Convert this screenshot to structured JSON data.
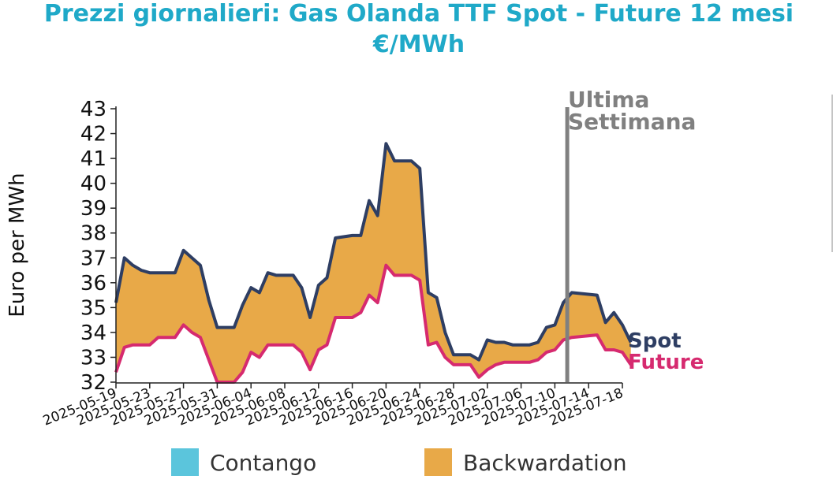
{
  "title": {
    "line1": "Prezzi giornalieri: Gas Olanda TTF Spot - Future 12 mesi",
    "line2": "€/MWh"
  },
  "colors": {
    "title": "#1fa9c8",
    "spot": "#2e3e63",
    "future": "#d62a6f",
    "backwardation": "#e8a948",
    "contango": "#5bc5dc",
    "marker_line": "#808080"
  },
  "legend": {
    "contango": "Contango",
    "backwardation": "Backwardation"
  },
  "chart_data": {
    "type": "area",
    "title": "Prezzi giornalieri: Gas Olanda TTF Spot - Future 12 mesi",
    "subtitle": "€/MWh",
    "ylabel": "Euro per MWh",
    "xlabel": "",
    "ylim": [
      32,
      43
    ],
    "xlim": [
      "2025-05-19",
      "2025-07-18"
    ],
    "y_ticks": [
      32,
      33,
      34,
      35,
      36,
      37,
      38,
      39,
      40,
      41,
      42,
      43
    ],
    "x_ticks": [
      "2025-05-19",
      "2025-05-23",
      "2025-05-27",
      "2025-05-31",
      "2025-06-04",
      "2025-06-08",
      "2025-06-12",
      "2025-06-16",
      "2025-06-20",
      "2025-06-24",
      "2025-06-28",
      "2025-07-02",
      "2025-07-06",
      "2025-07-10",
      "2025-07-14",
      "2025-07-18"
    ],
    "grid": false,
    "legend_position": "bottom",
    "vertical_marker": {
      "date": "2025-07-11",
      "label_line1": "Ultima",
      "label_line2": "Settimana"
    },
    "fill_between": {
      "above": "Backwardation",
      "below": "Contango"
    },
    "series": [
      {
        "name": "Spot",
        "points": [
          [
            "2025-05-19",
            35.2
          ],
          [
            "2025-05-20",
            37.0
          ],
          [
            "2025-05-21",
            36.7
          ],
          [
            "2025-05-22",
            36.5
          ],
          [
            "2025-05-23",
            36.4
          ],
          [
            "2025-05-26",
            36.4
          ],
          [
            "2025-05-27",
            37.3
          ],
          [
            "2025-05-28",
            37.0
          ],
          [
            "2025-05-29",
            36.7
          ],
          [
            "2025-05-30",
            35.3
          ],
          [
            "2025-05-31",
            34.2
          ],
          [
            "2025-06-02",
            34.2
          ],
          [
            "2025-06-03",
            35.1
          ],
          [
            "2025-06-04",
            35.8
          ],
          [
            "2025-06-05",
            35.6
          ],
          [
            "2025-06-06",
            36.4
          ],
          [
            "2025-06-07",
            36.3
          ],
          [
            "2025-06-09",
            36.3
          ],
          [
            "2025-06-10",
            35.8
          ],
          [
            "2025-06-11",
            34.6
          ],
          [
            "2025-06-12",
            35.9
          ],
          [
            "2025-06-13",
            36.2
          ],
          [
            "2025-06-14",
            37.8
          ],
          [
            "2025-06-16",
            37.9
          ],
          [
            "2025-06-17",
            37.9
          ],
          [
            "2025-06-18",
            39.3
          ],
          [
            "2025-06-19",
            38.7
          ],
          [
            "2025-06-20",
            41.6
          ],
          [
            "2025-06-21",
            40.9
          ],
          [
            "2025-06-23",
            40.9
          ],
          [
            "2025-06-24",
            40.6
          ],
          [
            "2025-06-25",
            35.6
          ],
          [
            "2025-06-26",
            35.4
          ],
          [
            "2025-06-27",
            34.0
          ],
          [
            "2025-06-28",
            33.1
          ],
          [
            "2025-06-30",
            33.1
          ],
          [
            "2025-07-01",
            32.9
          ],
          [
            "2025-07-02",
            33.7
          ],
          [
            "2025-07-03",
            33.6
          ],
          [
            "2025-07-04",
            33.6
          ],
          [
            "2025-07-05",
            33.5
          ],
          [
            "2025-07-07",
            33.5
          ],
          [
            "2025-07-08",
            33.6
          ],
          [
            "2025-07-09",
            34.2
          ],
          [
            "2025-07-10",
            34.3
          ],
          [
            "2025-07-11",
            35.2
          ],
          [
            "2025-07-12",
            35.6
          ],
          [
            "2025-07-15",
            35.5
          ],
          [
            "2025-07-16",
            34.4
          ],
          [
            "2025-07-17",
            34.8
          ],
          [
            "2025-07-18",
            34.3
          ],
          [
            "2025-07-19",
            33.6
          ]
        ]
      },
      {
        "name": "Future",
        "points": [
          [
            "2025-05-19",
            32.4
          ],
          [
            "2025-05-20",
            33.4
          ],
          [
            "2025-05-21",
            33.5
          ],
          [
            "2025-05-22",
            33.5
          ],
          [
            "2025-05-23",
            33.5
          ],
          [
            "2025-05-24",
            33.8
          ],
          [
            "2025-05-26",
            33.8
          ],
          [
            "2025-05-27",
            34.3
          ],
          [
            "2025-05-28",
            34.0
          ],
          [
            "2025-05-29",
            33.8
          ],
          [
            "2025-05-30",
            32.9
          ],
          [
            "2025-05-31",
            32.0
          ],
          [
            "2025-06-02",
            32.0
          ],
          [
            "2025-06-03",
            32.4
          ],
          [
            "2025-06-04",
            33.2
          ],
          [
            "2025-06-05",
            33.0
          ],
          [
            "2025-06-06",
            33.5
          ],
          [
            "2025-06-07",
            33.5
          ],
          [
            "2025-06-09",
            33.5
          ],
          [
            "2025-06-10",
            33.2
          ],
          [
            "2025-06-11",
            32.5
          ],
          [
            "2025-06-12",
            33.3
          ],
          [
            "2025-06-13",
            33.5
          ],
          [
            "2025-06-14",
            34.6
          ],
          [
            "2025-06-16",
            34.6
          ],
          [
            "2025-06-17",
            34.8
          ],
          [
            "2025-06-18",
            35.5
          ],
          [
            "2025-06-19",
            35.2
          ],
          [
            "2025-06-20",
            36.7
          ],
          [
            "2025-06-21",
            36.3
          ],
          [
            "2025-06-23",
            36.3
          ],
          [
            "2025-06-24",
            36.1
          ],
          [
            "2025-06-25",
            33.5
          ],
          [
            "2025-06-26",
            33.6
          ],
          [
            "2025-06-27",
            33.0
          ],
          [
            "2025-06-28",
            32.7
          ],
          [
            "2025-06-30",
            32.7
          ],
          [
            "2025-07-01",
            32.2
          ],
          [
            "2025-07-02",
            32.5
          ],
          [
            "2025-07-03",
            32.7
          ],
          [
            "2025-07-04",
            32.8
          ],
          [
            "2025-07-07",
            32.8
          ],
          [
            "2025-07-08",
            32.9
          ],
          [
            "2025-07-09",
            33.2
          ],
          [
            "2025-07-10",
            33.3
          ],
          [
            "2025-07-11",
            33.7
          ],
          [
            "2025-07-12",
            33.8
          ],
          [
            "2025-07-15",
            33.9
          ],
          [
            "2025-07-16",
            33.3
          ],
          [
            "2025-07-17",
            33.3
          ],
          [
            "2025-07-18",
            33.2
          ],
          [
            "2025-07-19",
            32.7
          ]
        ]
      }
    ]
  }
}
